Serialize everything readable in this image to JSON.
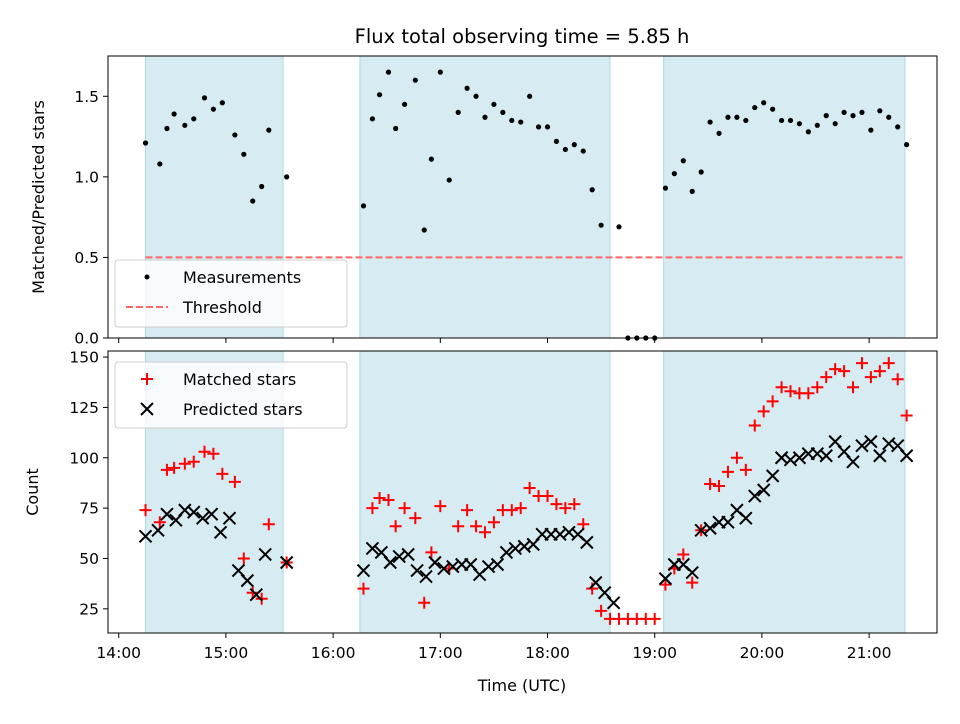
{
  "figure": {
    "title": "Flux total observing time = 5.85 h"
  },
  "colors": {
    "band": "#add8e6",
    "threshold": "#ff6666",
    "matched": "#ff0000",
    "predicted": "#000000",
    "measurement": "#000000"
  },
  "chart_data": [
    {
      "type": "scatter",
      "ylabel": "Matched/Predicted stars",
      "ylim": [
        0,
        1.75
      ],
      "xlim": [
        "13:54",
        "21:38"
      ],
      "yticks": [
        "0.0",
        "0.5",
        "1.0",
        "1.5"
      ],
      "observing_windows": [
        [
          "14:15",
          "15:32"
        ],
        [
          "16:15",
          "18:35"
        ],
        [
          "19:05",
          "21:20"
        ]
      ],
      "threshold": 0.5,
      "legend": {
        "placement": "lower-left",
        "entries": [
          "Measurements",
          "Threshold"
        ]
      },
      "series": [
        {
          "name": "Measurements",
          "x": [
            "14:15",
            "14:23",
            "14:27",
            "14:31",
            "14:37",
            "14:42",
            "14:48",
            "14:53",
            "14:58",
            "15:05",
            "15:10",
            "15:15",
            "15:20",
            "15:24",
            "15:34",
            "16:17",
            "16:22",
            "16:26",
            "16:31",
            "16:35",
            "16:40",
            "16:46",
            "16:51",
            "16:55",
            "17:00",
            "17:05",
            "17:10",
            "17:15",
            "17:20",
            "17:25",
            "17:30",
            "17:35",
            "17:40",
            "17:45",
            "17:50",
            "17:55",
            "18:00",
            "18:05",
            "18:10",
            "18:15",
            "18:20",
            "18:25",
            "18:30",
            "18:40",
            "18:45",
            "18:50",
            "18:55",
            "19:00",
            "19:06",
            "19:11",
            "19:16",
            "19:21",
            "19:26",
            "19:31",
            "19:36",
            "19:41",
            "19:46",
            "19:51",
            "19:56",
            "20:01",
            "20:06",
            "20:11",
            "20:16",
            "20:21",
            "20:26",
            "20:31",
            "20:36",
            "20:41",
            "20:46",
            "20:51",
            "20:56",
            "21:01",
            "21:06",
            "21:11",
            "21:16",
            "21:21"
          ],
          "y": [
            1.21,
            1.08,
            1.3,
            1.39,
            1.32,
            1.36,
            1.49,
            1.42,
            1.46,
            1.26,
            1.14,
            0.85,
            0.94,
            1.29,
            1.0,
            0.82,
            1.36,
            1.51,
            1.65,
            1.3,
            1.45,
            1.6,
            0.67,
            1.11,
            1.65,
            0.98,
            1.4,
            1.55,
            1.5,
            1.37,
            1.45,
            1.4,
            1.35,
            1.34,
            1.5,
            1.31,
            1.31,
            1.22,
            1.17,
            1.2,
            1.16,
            0.92,
            0.7,
            0.69,
            0.0,
            0.0,
            0.0,
            0.0,
            0.93,
            1.02,
            1.1,
            0.91,
            1.03,
            1.34,
            1.27,
            1.37,
            1.37,
            1.35,
            1.43,
            1.46,
            1.42,
            1.35,
            1.35,
            1.33,
            1.28,
            1.32,
            1.38,
            1.33,
            1.4,
            1.38,
            1.4,
            1.29,
            1.41,
            1.37,
            1.31,
            1.2
          ]
        }
      ]
    },
    {
      "type": "scatter",
      "xlabel": "Time (UTC)",
      "ylabel": "Count",
      "ylim": [
        13,
        153
      ],
      "xlim": [
        "13:54",
        "21:38"
      ],
      "yticks": [
        "25",
        "50",
        "75",
        "100",
        "125",
        "150"
      ],
      "xticks": [
        "14:00",
        "15:00",
        "16:00",
        "17:00",
        "18:00",
        "19:00",
        "20:00",
        "21:00"
      ],
      "observing_windows": [
        [
          "14:15",
          "15:32"
        ],
        [
          "16:15",
          "18:35"
        ],
        [
          "19:05",
          "21:20"
        ]
      ],
      "legend": {
        "placement": "upper-left",
        "entries": [
          "Matched stars",
          "Predicted stars"
        ]
      },
      "series": [
        {
          "name": "Matched stars",
          "x": [
            "14:15",
            "14:23",
            "14:27",
            "14:31",
            "14:37",
            "14:42",
            "14:48",
            "14:53",
            "14:58",
            "15:05",
            "15:10",
            "15:15",
            "15:20",
            "15:24",
            "15:34",
            "16:17",
            "16:22",
            "16:26",
            "16:31",
            "16:35",
            "16:40",
            "16:46",
            "16:51",
            "16:55",
            "17:00",
            "17:05",
            "17:10",
            "17:15",
            "17:20",
            "17:25",
            "17:30",
            "17:35",
            "17:40",
            "17:45",
            "17:50",
            "17:55",
            "18:00",
            "18:05",
            "18:10",
            "18:15",
            "18:20",
            "18:25",
            "18:30",
            "18:35",
            "18:40",
            "18:45",
            "18:50",
            "18:55",
            "19:00",
            "19:06",
            "19:11",
            "19:16",
            "19:21",
            "19:26",
            "19:31",
            "19:36",
            "19:41",
            "19:46",
            "19:51",
            "19:56",
            "20:01",
            "20:06",
            "20:11",
            "20:16",
            "20:21",
            "20:26",
            "20:31",
            "20:36",
            "20:41",
            "20:46",
            "20:51",
            "20:56",
            "21:01",
            "21:06",
            "21:11",
            "21:16",
            "21:21"
          ],
          "y": [
            74,
            68,
            94,
            95,
            97,
            98,
            103,
            102,
            92,
            88,
            50,
            33,
            30,
            67,
            48,
            35,
            75,
            80,
            79,
            66,
            75,
            70,
            28,
            53,
            76,
            45,
            66,
            74,
            66,
            63,
            68,
            74,
            74,
            75,
            85,
            81,
            81,
            77,
            75,
            77,
            67,
            35,
            24,
            20,
            20,
            20,
            20,
            20,
            20,
            37,
            45,
            52,
            38,
            64,
            87,
            86,
            93,
            100,
            94,
            116,
            123,
            128,
            135,
            133,
            132,
            132,
            135,
            140,
            144,
            143,
            135,
            147,
            140,
            143,
            147,
            139,
            121
          ]
        },
        {
          "name": "Predicted stars",
          "x": [
            "14:15",
            "14:22",
            "14:27",
            "14:32",
            "14:37",
            "14:42",
            "14:47",
            "14:52",
            "14:57",
            "15:02",
            "15:07",
            "15:12",
            "15:17",
            "15:22",
            "15:34",
            "16:17",
            "16:22",
            "16:27",
            "16:32",
            "16:37",
            "16:42",
            "16:47",
            "16:52",
            "16:57",
            "17:02",
            "17:07",
            "17:12",
            "17:17",
            "17:22",
            "17:27",
            "17:32",
            "17:37",
            "17:42",
            "17:47",
            "17:52",
            "17:57",
            "18:02",
            "18:07",
            "18:12",
            "18:17",
            "18:22",
            "18:27",
            "18:32",
            "18:37",
            "19:06",
            "19:11",
            "19:16",
            "19:21",
            "19:26",
            "19:31",
            "19:36",
            "19:41",
            "19:46",
            "19:51",
            "19:56",
            "20:01",
            "20:06",
            "20:11",
            "20:16",
            "20:21",
            "20:26",
            "20:31",
            "20:36",
            "20:41",
            "20:46",
            "20:51",
            "20:56",
            "21:01",
            "21:06",
            "21:11",
            "21:16",
            "21:21"
          ],
          "y": [
            61,
            64,
            72,
            69,
            74,
            73,
            70,
            72,
            63,
            70,
            44,
            39,
            32,
            52,
            48,
            44,
            55,
            53,
            48,
            51,
            52,
            44,
            41,
            48,
            45,
            46,
            47,
            47,
            42,
            46,
            47,
            53,
            55,
            56,
            57,
            62,
            62,
            62,
            63,
            62,
            58,
            38,
            33,
            28,
            40,
            47,
            47,
            43,
            64,
            65,
            68,
            68,
            74,
            70,
            81,
            84,
            91,
            100,
            99,
            100,
            102,
            102,
            101,
            108,
            103,
            98,
            106,
            108,
            101,
            107,
            106,
            101
          ]
        }
      ]
    }
  ]
}
